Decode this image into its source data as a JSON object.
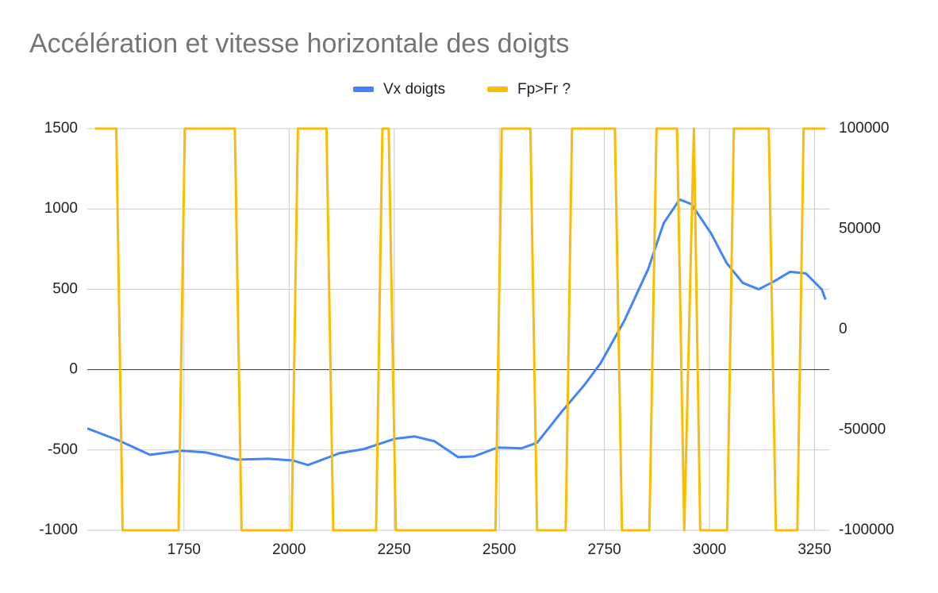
{
  "chart_data": {
    "type": "line",
    "title": "Accélération et vitesse horizontale des doigts",
    "xlim": [
      1520,
      3285
    ],
    "xticks": [
      1750,
      2000,
      2250,
      2500,
      2750,
      3000,
      3250
    ],
    "ylim": [
      -1000,
      1500
    ],
    "yticks": [
      -1000,
      -500,
      0,
      500,
      1000,
      1500
    ],
    "y2lim": [
      -100000,
      100000
    ],
    "y2ticks": [
      -100000,
      -50000,
      0,
      50000,
      100000
    ],
    "grid": true,
    "legend": "top",
    "series": [
      {
        "name": "Vx doigts",
        "color": "#4285f4",
        "x": [
          1520,
          1594,
          1669,
          1745,
          1801,
          1876,
          1951,
          2008,
          2045,
          2120,
          2177,
          2252,
          2299,
          2346,
          2402,
          2440,
          2496,
          2553,
          2590,
          2647,
          2703,
          2741,
          2797,
          2854,
          2891,
          2929,
          2957,
          3004,
          3041,
          3079,
          3117,
          3154,
          3192,
          3229,
          3267,
          3276
        ],
        "values": [
          -366,
          -440,
          -530,
          -505,
          -515,
          -560,
          -555,
          -565,
          -594,
          -520,
          -495,
          -430,
          -416,
          -446,
          -545,
          -540,
          -485,
          -490,
          -455,
          -267,
          -94,
          40,
          302,
          624,
          911,
          1059,
          1030,
          847,
          663,
          540,
          500,
          550,
          609,
          599,
          500,
          436
        ]
      },
      {
        "name": "Fp>Fr ?",
        "color": "#fbbc04",
        "axis": "y2",
        "x": [
          1538,
          1589,
          1604,
          1737,
          1752,
          1871,
          1887,
          2006,
          2021,
          2089,
          2105,
          2207,
          2222,
          2237,
          2254,
          2491,
          2506,
          2574,
          2590,
          2658,
          2673,
          2775,
          2792,
          2857,
          2874,
          2923,
          2940,
          2963,
          2978,
          3042,
          3058,
          3141,
          3158,
          3209,
          3224,
          3276
        ],
        "values": [
          100000,
          100000,
          -100000,
          -100000,
          100000,
          100000,
          -100000,
          -100000,
          100000,
          100000,
          -100000,
          -100000,
          100000,
          100000,
          -100000,
          -100000,
          100000,
          100000,
          -100000,
          -100000,
          100000,
          100000,
          -100000,
          -100000,
          100000,
          100000,
          -100000,
          100000,
          -100000,
          -100000,
          100000,
          100000,
          -100000,
          -100000,
          100000,
          100000
        ]
      }
    ]
  }
}
